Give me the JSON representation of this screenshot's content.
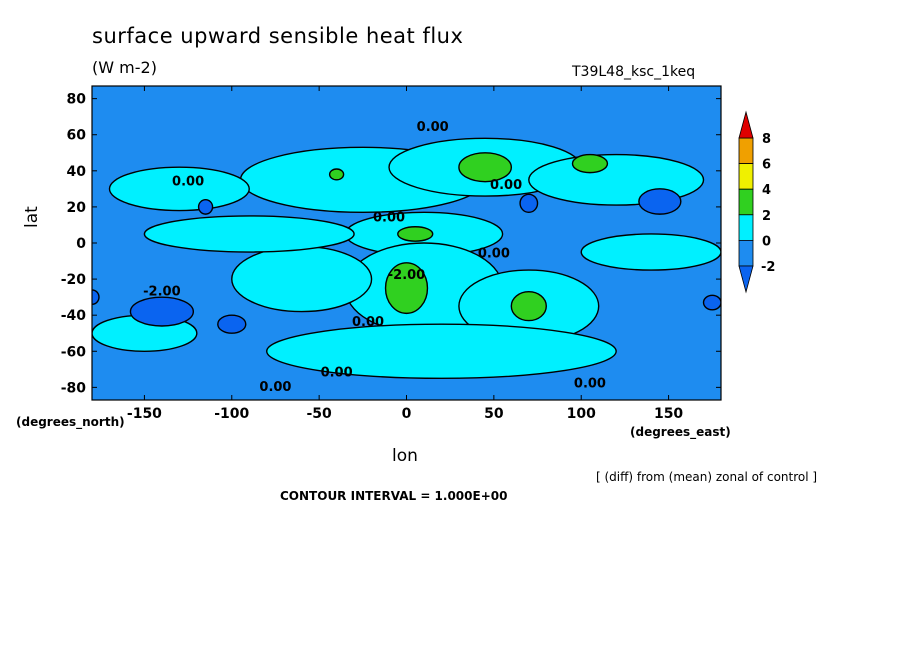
{
  "chart_data": {
    "type": "heatmap",
    "title": "surface upward sensible heat flux",
    "units": "(W m-2)",
    "run_label": "T39L48_ksc_1keq",
    "xlabel": "lon",
    "ylabel": "lat",
    "x_unit": "(degrees_east)",
    "y_unit": "(degrees_north)",
    "xlim": [
      -180,
      180
    ],
    "ylim": [
      -87,
      87
    ],
    "x_ticks": [
      -150,
      -100,
      -50,
      0,
      50,
      100,
      150
    ],
    "y_ticks": [
      80,
      60,
      40,
      20,
      0,
      -20,
      -40,
      -60,
      -80
    ],
    "note": "[ (diff) from (mean) zonal of control ]",
    "contour_interval": "CONTOUR INTERVAL = 1.000E+00",
    "colorbar": {
      "levels": [
        -2,
        0,
        2,
        4,
        6,
        8
      ],
      "tick_labels": [
        "8",
        "6",
        "4",
        "2",
        "0",
        "-2"
      ],
      "colors": [
        "#0a64f0",
        "#1e8cf0",
        "#00f0ff",
        "#30d020",
        "#f0f000",
        "#f0a000",
        "#e00000"
      ]
    },
    "contour_labels": [
      {
        "text": "0.00",
        "lon": 15,
        "lat": 62
      },
      {
        "text": "0.00",
        "lon": -125,
        "lat": 32
      },
      {
        "text": "0.00",
        "lon": -10,
        "lat": 12
      },
      {
        "text": "0.00",
        "lon": 57,
        "lat": 30
      },
      {
        "text": "0.00",
        "lon": 50,
        "lat": -8
      },
      {
        "text": "-2.00",
        "lon": -140,
        "lat": -29
      },
      {
        "text": "-2.00",
        "lon": 0,
        "lat": -20
      },
      {
        "text": "0.00",
        "lon": -22,
        "lat": -46
      },
      {
        "text": "0.00",
        "lon": -40,
        "lat": -74
      },
      {
        "text": "0.00",
        "lon": -75,
        "lat": -82
      },
      {
        "text": "0.00",
        "lon": 105,
        "lat": -80
      }
    ],
    "regions": [
      {
        "level": 0,
        "lon": -25,
        "lat": 35,
        "rx": 70,
        "ry": 18
      },
      {
        "level": 0,
        "lon": 45,
        "lat": 42,
        "rx": 55,
        "ry": 16
      },
      {
        "level": 0,
        "lon": 10,
        "lat": 5,
        "rx": 45,
        "ry": 12
      },
      {
        "level": 0,
        "lon": 10,
        "lat": -25,
        "rx": 45,
        "ry": 25
      },
      {
        "level": 0,
        "lon": 70,
        "lat": -35,
        "rx": 40,
        "ry": 20
      },
      {
        "level": 0,
        "lon": -60,
        "lat": -20,
        "rx": 40,
        "ry": 18
      },
      {
        "level": 0,
        "lon": 20,
        "lat": -60,
        "rx": 100,
        "ry": 15
      },
      {
        "level": 0,
        "lon": -130,
        "lat": 30,
        "rx": 40,
        "ry": 12
      },
      {
        "level": 0,
        "lon": 120,
        "lat": 35,
        "rx": 50,
        "ry": 14
      },
      {
        "level": 0,
        "lon": -90,
        "lat": 5,
        "rx": 60,
        "ry": 10
      },
      {
        "level": 0,
        "lon": 140,
        "lat": -5,
        "rx": 40,
        "ry": 10
      },
      {
        "level": 0,
        "lon": -150,
        "lat": -50,
        "rx": 30,
        "ry": 10
      },
      {
        "level": 2,
        "lon": 45,
        "lat": 42,
        "rx": 15,
        "ry": 8
      },
      {
        "level": 2,
        "lon": 105,
        "lat": 44,
        "rx": 10,
        "ry": 5
      },
      {
        "level": 2,
        "lon": 5,
        "lat": 5,
        "rx": 10,
        "ry": 4
      },
      {
        "level": 2,
        "lon": 0,
        "lat": -25,
        "rx": 12,
        "ry": 14
      },
      {
        "level": 2,
        "lon": 70,
        "lat": -35,
        "rx": 10,
        "ry": 8
      },
      {
        "level": 2,
        "lon": -40,
        "lat": 38,
        "rx": 4,
        "ry": 3
      },
      {
        "level": -2,
        "lon": -140,
        "lat": -38,
        "rx": 18,
        "ry": 8
      },
      {
        "level": -2,
        "lon": -100,
        "lat": -45,
        "rx": 8,
        "ry": 5
      },
      {
        "level": -2,
        "lon": -115,
        "lat": 20,
        "rx": 4,
        "ry": 4
      },
      {
        "level": -2,
        "lon": 145,
        "lat": 23,
        "rx": 12,
        "ry": 7
      },
      {
        "level": -2,
        "lon": 70,
        "lat": 22,
        "rx": 5,
        "ry": 5
      },
      {
        "level": -2,
        "lon": 175,
        "lat": -33,
        "rx": 5,
        "ry": 4
      },
      {
        "level": -2,
        "lon": -180,
        "lat": -30,
        "rx": 4,
        "ry": 4
      }
    ]
  }
}
